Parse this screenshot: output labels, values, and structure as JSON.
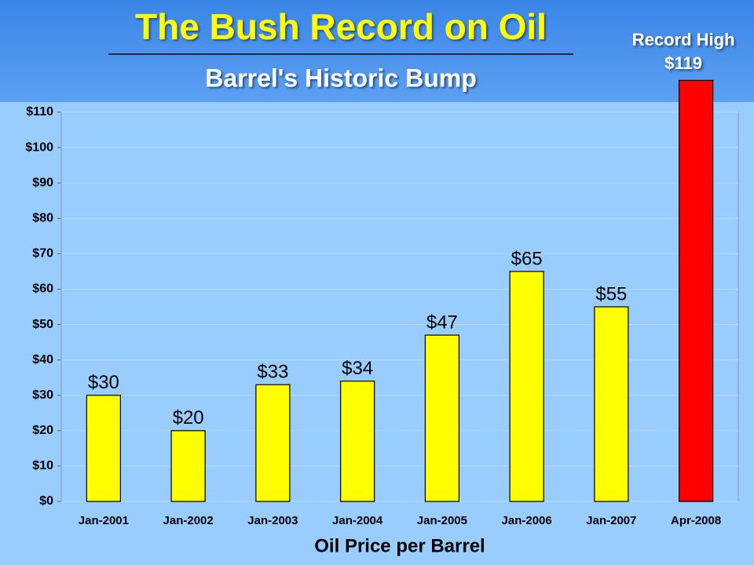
{
  "chart_data": {
    "type": "bar",
    "title": "The Bush Record on Oil",
    "subtitle": "Barrel's Historic Bump",
    "x_label": "Oil Price per Barrel",
    "annotation": "Record High",
    "categories": [
      "Jan-2001",
      "Jan-2002",
      "Jan-2003",
      "Jan-2004",
      "Jan-2005",
      "Jan-2006",
      "Jan-2007",
      "Apr-2008"
    ],
    "values": [
      30,
      20,
      33,
      34,
      47,
      65,
      55,
      119
    ],
    "value_labels": [
      "$30",
      "$20",
      "$33",
      "$34",
      "$47",
      "$65",
      "$55",
      "$119"
    ],
    "colors": [
      "#ffff00",
      "#ffff00",
      "#ffff00",
      "#ffff00",
      "#ffff00",
      "#ffff00",
      "#ffff00",
      "#ff0000"
    ],
    "ylim": [
      0,
      110
    ],
    "yticks": [
      {
        "value": 0,
        "label": "$0"
      },
      {
        "value": 10,
        "label": "$10"
      },
      {
        "value": 20,
        "label": "$20"
      },
      {
        "value": 30,
        "label": "$30"
      },
      {
        "value": 40,
        "label": "$40"
      },
      {
        "value": 50,
        "label": "$50"
      },
      {
        "value": 60,
        "label": "$60"
      },
      {
        "value": 70,
        "label": "$70"
      },
      {
        "value": 80,
        "label": "$80"
      },
      {
        "value": 90,
        "label": "$90"
      },
      {
        "value": 100,
        "label": "$100"
      },
      {
        "value": 110,
        "label": "$110"
      }
    ],
    "grid": true
  }
}
